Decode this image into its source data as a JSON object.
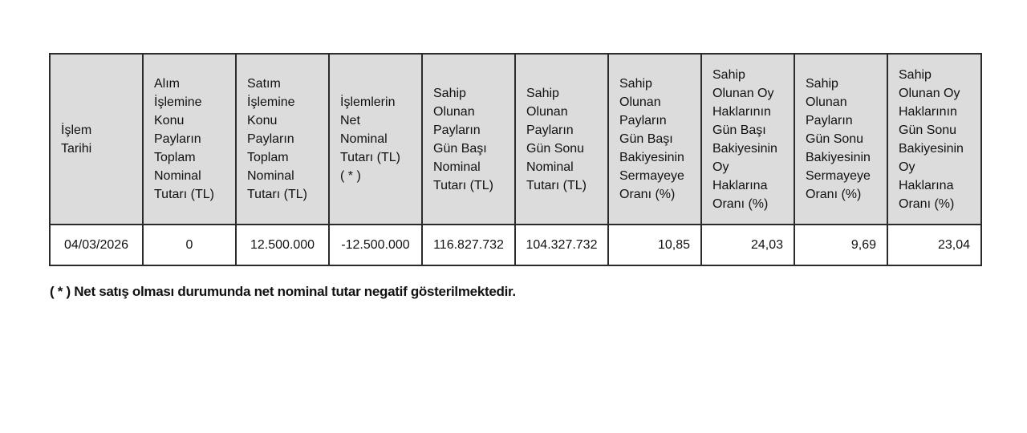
{
  "table": {
    "headers": [
      "İşlem\nTarihi",
      "Alım\nİşlemine\nKonu\nPayların\nToplam\nNominal\nTutarı (TL)",
      "Satım\nİşlemine\nKonu\nPayların\nToplam\nNominal\nTutarı (TL)",
      "İşlemlerin\nNet\nNominal\nTutarı (TL)\n( * )",
      "Sahip\nOlunan\nPayların\nGün Başı\nNominal\nTutarı (TL)",
      "Sahip\nOlunan\nPayların\nGün Sonu\nNominal\nTutarı (TL)",
      "Sahip\nOlunan\nPayların\nGün Başı\nBakiyesinin\nSermayeye\nOranı (%)",
      "Sahip\nOlunan Oy\nHaklarının\nGün Başı\nBakiyesinin\nOy\nHaklarına\nOranı (%)",
      "Sahip\nOlunan\nPayların\nGün Sonu\nBakiyesinin\nSermayeye\nOranı (%)",
      "Sahip\nOlunan Oy\nHaklarının\nGün Sonu\nBakiyesinin\nOy\nHaklarına\nOranı (%)"
    ],
    "rows": [
      [
        "04/03/2026",
        "0",
        "12.500.000",
        "-12.500.000",
        "116.827.732",
        "104.327.732",
        "10,85",
        "24,03",
        "9,69",
        "23,04"
      ]
    ]
  },
  "note": "( * ) Net satış olması durumunda net nominal tutar negatif gösterilmektedir."
}
